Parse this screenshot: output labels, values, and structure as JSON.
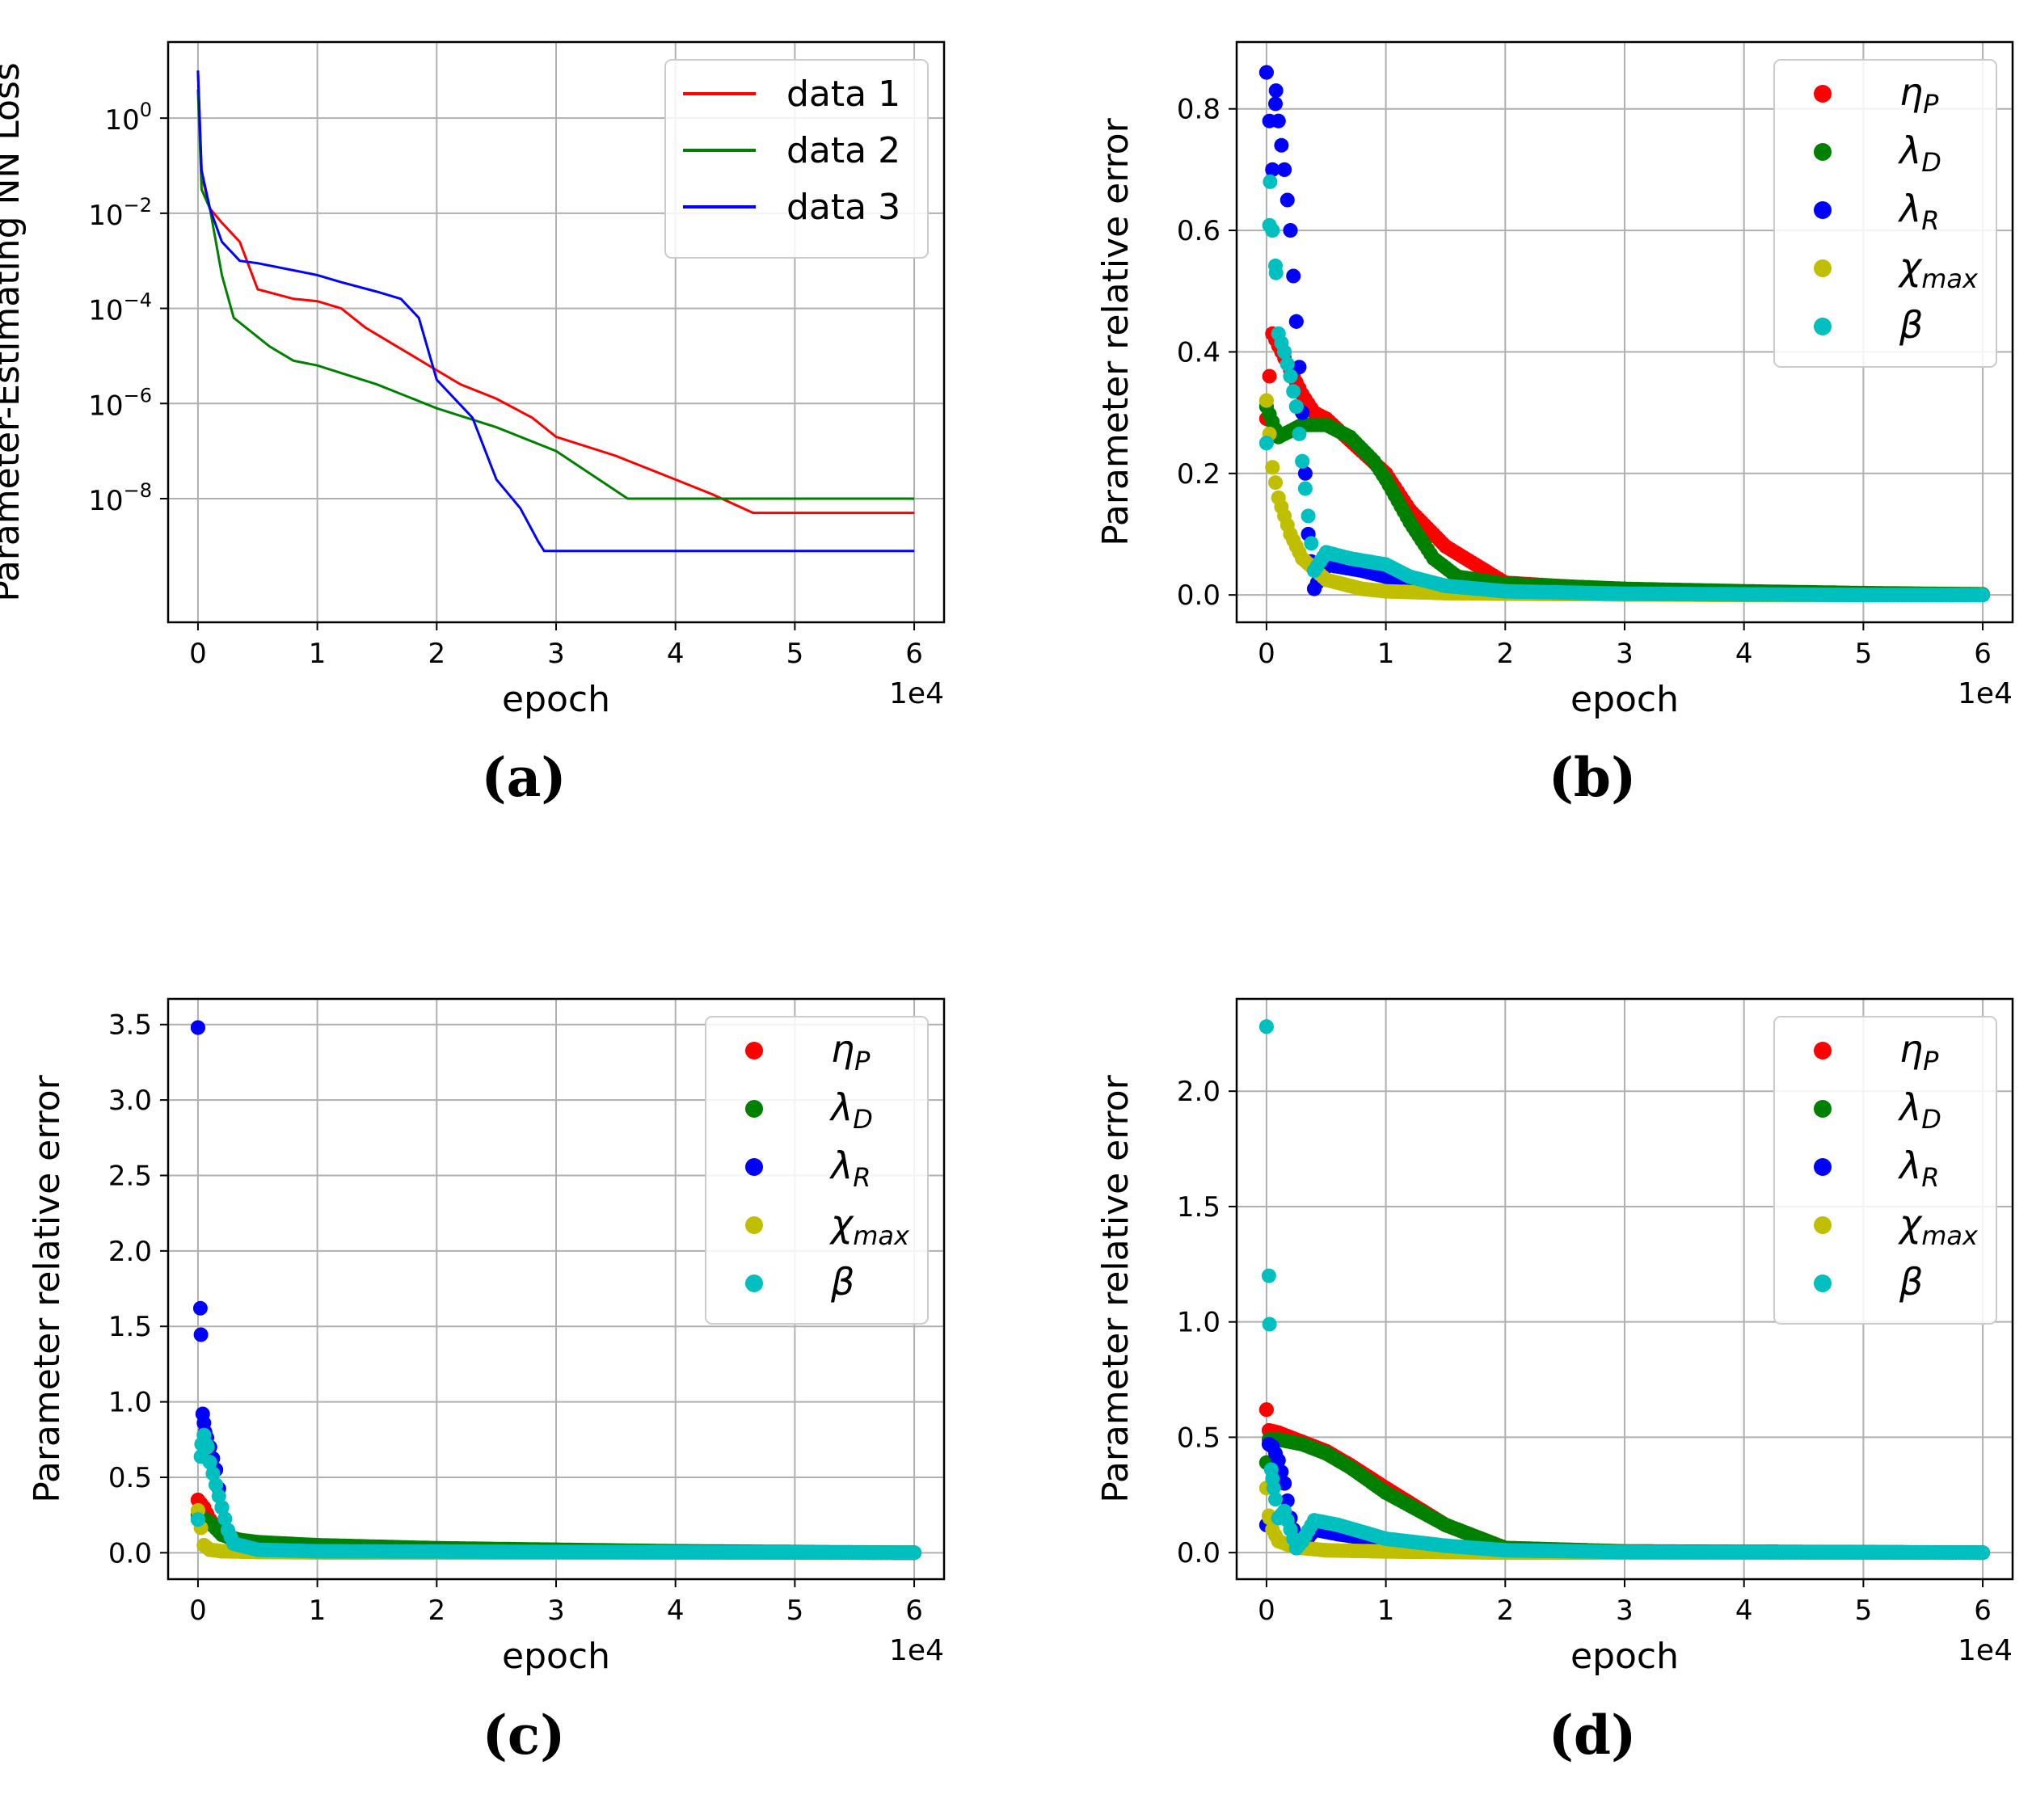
{
  "chart_data": [
    {
      "id": "a",
      "type": "line",
      "panel_label": "(a)",
      "xlabel": "epoch",
      "ylabel": "Parameter-Estimating NN Loss",
      "x_multiplier": "1e4",
      "xlim": [
        -0.25,
        6.25
      ],
      "xticks": [
        0,
        1,
        2,
        3,
        4,
        5,
        6
      ],
      "xtick_labels": [
        "0",
        "1",
        "2",
        "3",
        "4",
        "5",
        "6"
      ],
      "yscale": "log",
      "ylim_log10": [
        -10.6,
        1.6
      ],
      "yticks_log10": [
        0,
        -2,
        -4,
        -6,
        -8
      ],
      "ytick_labels": [
        [
          "10",
          "0"
        ],
        [
          "10",
          "−2"
        ],
        [
          "10",
          "−4"
        ],
        [
          "10",
          "−6"
        ],
        [
          "10",
          "−8"
        ]
      ],
      "grid": true,
      "legend_position": "upper right",
      "series": [
        {
          "name": "data 1",
          "color": "#ff0000",
          "x": [
            0,
            0.03,
            0.1,
            0.2,
            0.35,
            0.5,
            0.8,
            1.0,
            1.2,
            1.4,
            1.6,
            1.8,
            2.0,
            2.2,
            2.5,
            2.8,
            3.0,
            3.5,
            4.0,
            4.3,
            4.65,
            5.0,
            6.0
          ],
          "log10y": [
            1.0,
            -1.2,
            -1.9,
            -2.2,
            -2.6,
            -3.6,
            -3.8,
            -3.85,
            -4.0,
            -4.4,
            -4.7,
            -5.0,
            -5.3,
            -5.6,
            -5.9,
            -6.3,
            -6.7,
            -7.1,
            -7.6,
            -7.9,
            -8.3,
            -8.3,
            -8.3
          ]
        },
        {
          "name": "data 2",
          "color": "#008000",
          "x": [
            0,
            0.03,
            0.1,
            0.2,
            0.3,
            0.5,
            0.6,
            0.8,
            1.0,
            1.5,
            2.0,
            2.5,
            3.0,
            3.6,
            4.0,
            5.0,
            6.0
          ],
          "log10y": [
            0.6,
            -1.5,
            -1.9,
            -3.3,
            -4.2,
            -4.6,
            -4.8,
            -5.1,
            -5.2,
            -5.6,
            -6.1,
            -6.5,
            -7.0,
            -8.0,
            -8.0,
            -8.0,
            -8.0
          ]
        },
        {
          "name": "data 3",
          "color": "#0000ff",
          "x": [
            0,
            0.03,
            0.1,
            0.2,
            0.35,
            0.5,
            0.8,
            1.0,
            1.2,
            1.5,
            1.7,
            1.85,
            2.0,
            2.3,
            2.5,
            2.7,
            2.85,
            2.9,
            4.0,
            5.0,
            6.0
          ],
          "log10y": [
            1.0,
            -1.1,
            -1.9,
            -2.6,
            -3.0,
            -3.05,
            -3.2,
            -3.3,
            -3.45,
            -3.65,
            -3.8,
            -4.2,
            -5.5,
            -6.3,
            -7.6,
            -8.2,
            -8.9,
            -9.1,
            -9.1,
            -9.1,
            -9.1
          ]
        }
      ]
    },
    {
      "id": "b",
      "type": "scatter",
      "panel_label": "(b)",
      "xlabel": "epoch",
      "ylabel": "Parameter relative error",
      "x_multiplier": "1e4",
      "xlim": [
        -0.25,
        6.25
      ],
      "xticks": [
        0,
        1,
        2,
        3,
        4,
        5,
        6
      ],
      "xtick_labels": [
        "0",
        "1",
        "2",
        "3",
        "4",
        "5",
        "6"
      ],
      "ylim": [
        -0.045,
        0.91
      ],
      "yticks": [
        0.0,
        0.2,
        0.4,
        0.6,
        0.8
      ],
      "ytick_labels": [
        "0.0",
        "0.2",
        "0.4",
        "0.6",
        "0.8"
      ],
      "grid": true,
      "legend_position": "upper right",
      "series": [
        {
          "name": "ηP",
          "greek": "η",
          "subscript": "P",
          "color": "#ff0000",
          "x": [
            0,
            0.05,
            0.1,
            0.2,
            0.3,
            0.4,
            0.5,
            1.0,
            1.2,
            1.5,
            2.0,
            3.0,
            4.0,
            5.0,
            6.0
          ],
          "y": [
            0.29,
            0.43,
            0.41,
            0.37,
            0.33,
            0.3,
            0.29,
            0.2,
            0.14,
            0.08,
            0.02,
            0.008,
            0.004,
            0.002,
            0.001
          ]
        },
        {
          "name": "λD",
          "greek": "λ",
          "subscript": "D",
          "color": "#008000",
          "x": [
            0,
            0.1,
            0.3,
            0.5,
            0.7,
            0.9,
            1.0,
            1.2,
            1.4,
            1.6,
            2.0,
            3.0,
            4.0,
            5.0,
            6.0
          ],
          "y": [
            0.31,
            0.26,
            0.28,
            0.28,
            0.26,
            0.22,
            0.19,
            0.12,
            0.06,
            0.03,
            0.018,
            0.01,
            0.006,
            0.003,
            0.001
          ]
        },
        {
          "name": "λR",
          "greek": "λ",
          "subscript": "R",
          "color": "#0000ff",
          "x": [
            0,
            0.05,
            0.08,
            0.1,
            0.15,
            0.2,
            0.25,
            0.3,
            0.35,
            0.4,
            0.5,
            0.8,
            1.0,
            1.3,
            1.6,
            2.0,
            3.0,
            4.0,
            5.0,
            6.0
          ],
          "y": [
            0.86,
            0.7,
            0.83,
            0.78,
            0.7,
            0.6,
            0.45,
            0.3,
            0.1,
            0.01,
            0.05,
            0.04,
            0.03,
            0.015,
            0.007,
            0.003,
            0.001,
            0.001,
            0.0,
            0.0
          ]
        },
        {
          "name": "χmax",
          "greek": "χ",
          "subscript": "max",
          "color": "#bfbf00",
          "x": [
            0,
            0.05,
            0.1,
            0.2,
            0.3,
            0.5,
            0.8,
            1.0,
            1.5,
            2.0,
            3.0,
            4.0,
            5.0,
            6.0
          ],
          "y": [
            0.32,
            0.21,
            0.16,
            0.1,
            0.06,
            0.025,
            0.01,
            0.006,
            0.003,
            0.002,
            0.001,
            0.0,
            0.0,
            0.0
          ]
        },
        {
          "name": "β",
          "greek": "β",
          "subscript": "",
          "color": "#00bfbf",
          "x": [
            0,
            0.03,
            0.05,
            0.08,
            0.1,
            0.15,
            0.2,
            0.25,
            0.3,
            0.4,
            0.5,
            0.7,
            1.0,
            1.2,
            1.5,
            2.0,
            3.0,
            4.0,
            5.0,
            6.0
          ],
          "y": [
            0.25,
            0.68,
            0.6,
            0.53,
            0.43,
            0.4,
            0.36,
            0.31,
            0.22,
            0.04,
            0.07,
            0.06,
            0.05,
            0.03,
            0.015,
            0.006,
            0.002,
            0.001,
            0.0,
            0.0
          ]
        }
      ]
    },
    {
      "id": "c",
      "type": "scatter",
      "panel_label": "(c)",
      "xlabel": "epoch",
      "ylabel": "Parameter relative error",
      "x_multiplier": "1e4",
      "xlim": [
        -0.25,
        6.25
      ],
      "xticks": [
        0,
        1,
        2,
        3,
        4,
        5,
        6
      ],
      "xtick_labels": [
        "0",
        "1",
        "2",
        "3",
        "4",
        "5",
        "6"
      ],
      "ylim": [
        -0.175,
        3.67
      ],
      "yticks": [
        0.0,
        0.5,
        1.0,
        1.5,
        2.0,
        2.5,
        3.0,
        3.5
      ],
      "ytick_labels": [
        "0.0",
        "0.5",
        "1.0",
        "1.5",
        "2.0",
        "2.5",
        "3.0",
        "3.5"
      ],
      "grid": true,
      "legend_position": "upper right",
      "series": [
        {
          "name": "ηP",
          "greek": "η",
          "subscript": "P",
          "color": "#ff0000",
          "x": [
            0,
            0.05,
            0.1,
            0.2,
            0.5,
            1.0,
            2.0,
            6.0
          ],
          "y": [
            0.35,
            0.3,
            0.22,
            0.12,
            0.05,
            0.02,
            0.01,
            0.0
          ]
        },
        {
          "name": "λD",
          "greek": "λ",
          "subscript": "D",
          "color": "#008000",
          "x": [
            0,
            0.1,
            0.2,
            0.3,
            0.5,
            1.0,
            2.0,
            3.0,
            4.0,
            6.0
          ],
          "y": [
            0.25,
            0.2,
            0.12,
            0.09,
            0.07,
            0.05,
            0.03,
            0.02,
            0.01,
            0.0
          ]
        },
        {
          "name": "λR",
          "greek": "λ",
          "subscript": "R",
          "color": "#0000ff",
          "x": [
            0,
            0.02,
            0.04,
            0.06,
            0.1,
            0.15,
            0.2,
            0.25,
            0.3,
            0.5,
            1.0,
            6.0
          ],
          "y": [
            3.48,
            1.62,
            0.92,
            0.8,
            0.7,
            0.55,
            0.3,
            0.15,
            0.06,
            0.02,
            0.01,
            0.0
          ]
        },
        {
          "name": "χmax",
          "greek": "χ",
          "subscript": "max",
          "color": "#bfbf00",
          "x": [
            0,
            0.05,
            0.1,
            0.2,
            0.5,
            1.0,
            6.0
          ],
          "y": [
            0.28,
            0.05,
            0.02,
            0.01,
            0.005,
            0.002,
            0.0
          ]
        },
        {
          "name": "β",
          "greek": "β",
          "subscript": "",
          "color": "#00bfbf",
          "x": [
            0,
            0.03,
            0.05,
            0.08,
            0.1,
            0.15,
            0.2,
            0.25,
            0.3,
            0.5,
            1.0,
            6.0
          ],
          "y": [
            0.22,
            0.72,
            0.78,
            0.7,
            0.6,
            0.45,
            0.3,
            0.15,
            0.06,
            0.02,
            0.01,
            0.0
          ]
        }
      ]
    },
    {
      "id": "d",
      "type": "scatter",
      "panel_label": "(d)",
      "xlabel": "epoch",
      "ylabel": "Parameter relative error",
      "x_multiplier": "1e4",
      "xlim": [
        -0.25,
        6.25
      ],
      "xticks": [
        0,
        1,
        2,
        3,
        4,
        5,
        6
      ],
      "xtick_labels": [
        "0",
        "1",
        "2",
        "3",
        "4",
        "5",
        "6"
      ],
      "ylim": [
        -0.115,
        2.4
      ],
      "yticks": [
        0.0,
        0.5,
        1.0,
        1.5,
        2.0
      ],
      "ytick_labels": [
        "0.0",
        "0.5",
        "1.0",
        "1.5",
        "2.0"
      ],
      "grid": true,
      "legend_position": "upper right",
      "series": [
        {
          "name": "ηP",
          "greek": "η",
          "subscript": "P",
          "color": "#ff0000",
          "x": [
            0,
            0.02,
            0.1,
            0.3,
            0.5,
            0.7,
            1.0,
            1.5,
            2.0,
            3.0,
            6.0
          ],
          "y": [
            0.62,
            0.53,
            0.52,
            0.48,
            0.44,
            0.38,
            0.28,
            0.12,
            0.02,
            0.005,
            0.0
          ]
        },
        {
          "name": "λD",
          "greek": "λ",
          "subscript": "D",
          "color": "#008000",
          "x": [
            0,
            0.02,
            0.1,
            0.3,
            0.5,
            0.7,
            1.0,
            1.5,
            2.0,
            3.0,
            6.0
          ],
          "y": [
            0.39,
            0.49,
            0.49,
            0.47,
            0.43,
            0.37,
            0.26,
            0.12,
            0.02,
            0.005,
            0.0
          ]
        },
        {
          "name": "λR",
          "greek": "λ",
          "subscript": "R",
          "color": "#0000ff",
          "x": [
            0,
            0.02,
            0.05,
            0.1,
            0.15,
            0.2,
            0.25,
            0.3,
            0.4,
            0.6,
            1.0,
            1.5,
            2.0,
            6.0
          ],
          "y": [
            0.12,
            0.47,
            0.46,
            0.4,
            0.3,
            0.15,
            0.05,
            0.03,
            0.1,
            0.08,
            0.05,
            0.02,
            0.005,
            0.0
          ]
        },
        {
          "name": "χmax",
          "greek": "χ",
          "subscript": "max",
          "color": "#bfbf00",
          "x": [
            0,
            0.02,
            0.05,
            0.1,
            0.2,
            0.3,
            0.5,
            1.0,
            2.0,
            6.0
          ],
          "y": [
            0.28,
            0.16,
            0.1,
            0.05,
            0.03,
            0.02,
            0.01,
            0.005,
            0.0,
            0.0
          ]
        },
        {
          "name": "β",
          "greek": "β",
          "subscript": "",
          "color": "#00bfbf",
          "x": [
            0,
            0.02,
            0.04,
            0.06,
            0.1,
            0.15,
            0.2,
            0.25,
            0.3,
            0.4,
            0.6,
            1.0,
            1.5,
            2.0,
            3.0,
            6.0
          ],
          "y": [
            2.28,
            1.2,
            0.36,
            0.28,
            0.15,
            0.18,
            0.1,
            0.02,
            0.05,
            0.14,
            0.12,
            0.06,
            0.03,
            0.01,
            0.003,
            0.0
          ]
        }
      ]
    }
  ]
}
